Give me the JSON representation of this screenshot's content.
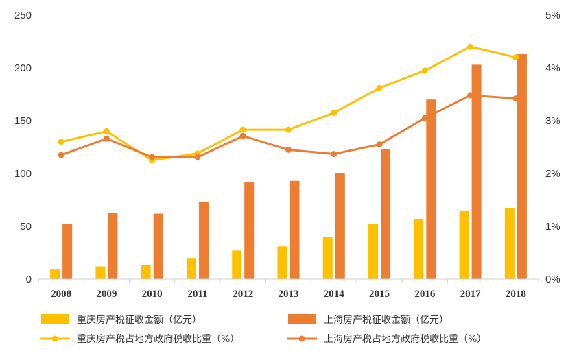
{
  "chart_data": {
    "type": "bar",
    "categories": [
      "2008",
      "2009",
      "2010",
      "2011",
      "2012",
      "2013",
      "2014",
      "2015",
      "2016",
      "2017",
      "2018"
    ],
    "series": [
      {
        "name": "重庆房产税征收金额（亿元）",
        "type": "bar",
        "axis": "left",
        "color": "#FFC000",
        "values": [
          9,
          12,
          13,
          20,
          27,
          31,
          40,
          52,
          57,
          65,
          67
        ]
      },
      {
        "name": "上海房产税征收金额（亿元）",
        "type": "bar",
        "axis": "left",
        "color": "#ED7D31",
        "values": [
          52,
          63,
          62,
          73,
          92,
          93,
          100,
          123,
          170,
          203,
          213
        ]
      },
      {
        "name": "重庆房产税占地方政府税收比重（%）",
        "type": "line",
        "axis": "right",
        "color": "#FFC000",
        "values": [
          2.6,
          2.8,
          2.25,
          2.38,
          2.83,
          2.83,
          3.15,
          3.62,
          3.95,
          4.4,
          4.2
        ]
      },
      {
        "name": "上海房产税占地方政府税收比重（%）",
        "type": "line",
        "axis": "right",
        "color": "#ED7D31",
        "values": [
          2.35,
          2.66,
          2.31,
          2.31,
          2.71,
          2.45,
          2.37,
          2.55,
          3.05,
          3.48,
          3.42
        ]
      }
    ],
    "y_left": {
      "min": 0,
      "max": 250,
      "ticks": [
        "0",
        "50",
        "100",
        "150",
        "200",
        "250"
      ]
    },
    "y_right": {
      "min": 0,
      "max": 5,
      "ticks": [
        "0%",
        "1%",
        "2%",
        "3%",
        "4%",
        "5%"
      ]
    },
    "grid": false,
    "legend_position": "bottom",
    "title": "",
    "xlabel": "",
    "ylabel": ""
  }
}
